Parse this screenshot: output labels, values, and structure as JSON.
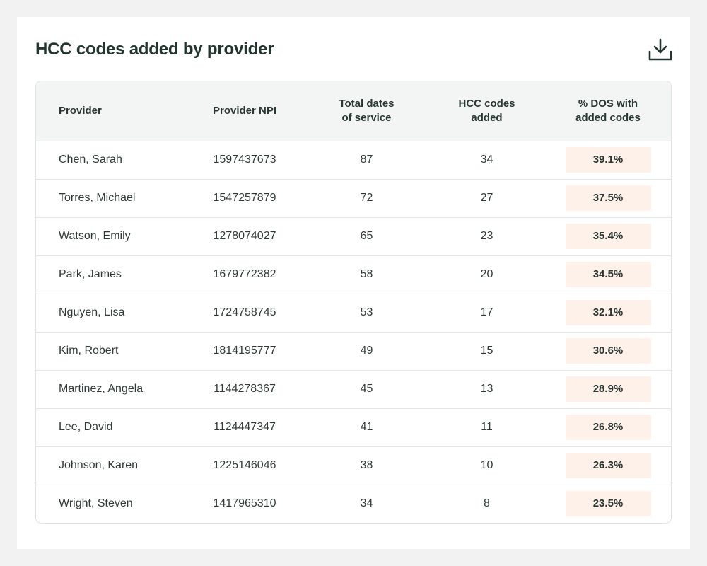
{
  "title": "HCC codes added by provider",
  "download_icon": "download-icon",
  "colors": {
    "accent_text": "#23352f",
    "header_bg": "#f3f5f4",
    "pill_bg": "#fdf1ea"
  },
  "table": {
    "headers": {
      "provider": "Provider",
      "npi": "Provider NPI",
      "dates_line1": "Total dates",
      "dates_line2": "of service",
      "codes_line1": "HCC codes",
      "codes_line2": "added",
      "pct_line1": "% DOS with",
      "pct_line2": "added codes"
    },
    "rows": [
      {
        "provider": "Chen, Sarah",
        "npi": "1597437673",
        "dates": "87",
        "codes": "34",
        "pct": "39.1%"
      },
      {
        "provider": "Torres, Michael",
        "npi": "1547257879",
        "dates": "72",
        "codes": "27",
        "pct": "37.5%"
      },
      {
        "provider": "Watson, Emily",
        "npi": "1278074027",
        "dates": "65",
        "codes": "23",
        "pct": "35.4%"
      },
      {
        "provider": "Park, James",
        "npi": "1679772382",
        "dates": "58",
        "codes": "20",
        "pct": "34.5%"
      },
      {
        "provider": "Nguyen, Lisa",
        "npi": "1724758745",
        "dates": "53",
        "codes": "17",
        "pct": "32.1%"
      },
      {
        "provider": "Kim, Robert",
        "npi": "1814195777",
        "dates": "49",
        "codes": "15",
        "pct": "30.6%"
      },
      {
        "provider": "Martinez, Angela",
        "npi": "1144278367",
        "dates": "45",
        "codes": "13",
        "pct": "28.9%"
      },
      {
        "provider": "Lee, David",
        "npi": "1124447347",
        "dates": "41",
        "codes": "11",
        "pct": "26.8%"
      },
      {
        "provider": "Johnson, Karen",
        "npi": "1225146046",
        "dates": "38",
        "codes": "10",
        "pct": "26.3%"
      },
      {
        "provider": "Wright, Steven",
        "npi": "1417965310",
        "dates": "34",
        "codes": "8",
        "pct": "23.5%"
      }
    ]
  }
}
